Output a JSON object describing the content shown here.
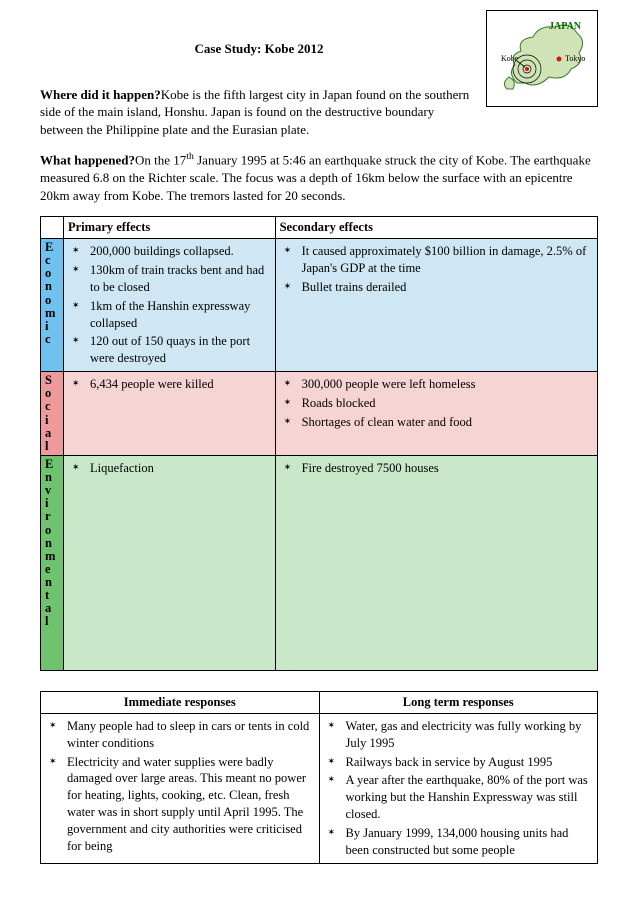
{
  "title": "Case Study: Kobe 2012",
  "map": {
    "label_japan": "JAPAN",
    "label_kobe": "Kobe",
    "label_tokyo": "Tokyo"
  },
  "where": {
    "question": "Where did it happen?",
    "text": "Kobe is the fifth largest city in Japan found on the southern side of the main island, Honshu. Japan is found on the destructive boundary between the Philippine plate and the Eurasian plate."
  },
  "what": {
    "question": "What happened?",
    "text_pre": "On the 17",
    "text_sup": "th",
    "text_post": " January 1995 at 5:46 an earthquake struck the city of Kobe. The earthquake measured 6.8 on the Richter scale. The focus was a depth of 16km below the surface with an epicentre 20km away from Kobe. The tremors lasted for 20 seconds."
  },
  "effects_header": {
    "primary": "Primary effects",
    "secondary": "Secondary effects"
  },
  "economic": {
    "label": "Economic",
    "primary": [
      "200,000 buildings collapsed.",
      "130km of train tracks bent and had to be closed",
      "1km of the Hanshin expressway collapsed",
      "120 out of 150 quays in the port were destroyed"
    ],
    "secondary": [
      "It caused approximately $100 billion in damage, 2.5% of Japan's GDP at the time",
      "Bullet trains derailed"
    ]
  },
  "social": {
    "label": "Social",
    "primary": [
      "6,434 people were killed"
    ],
    "secondary": [
      "300,000 people were left homeless",
      "Roads blocked",
      "Shortages of clean water and food"
    ]
  },
  "environmental": {
    "label": "Environmental",
    "primary": [
      "Liquefaction"
    ],
    "secondary": [
      "Fire destroyed 7500 houses"
    ]
  },
  "responses_header": {
    "immediate": "Immediate responses",
    "longterm": "Long term responses"
  },
  "responses": {
    "immediate": [
      "Many people had to sleep in cars or tents in cold winter conditions",
      "Electricity and water supplies were badly damaged over large areas. This meant no power for heating, lights, cooking, etc. Clean, fresh water was in short supply until April 1995. The government and city authorities were criticised for being"
    ],
    "longterm": [
      "Water, gas and electricity was fully working by July 1995",
      "Railways back in service by August 1995",
      "A year after the earthquake, 80% of the port was working but the Hanshin Expressway was still closed.",
      "By January 1999, 134,000 housing units had been constructed but some people"
    ]
  }
}
